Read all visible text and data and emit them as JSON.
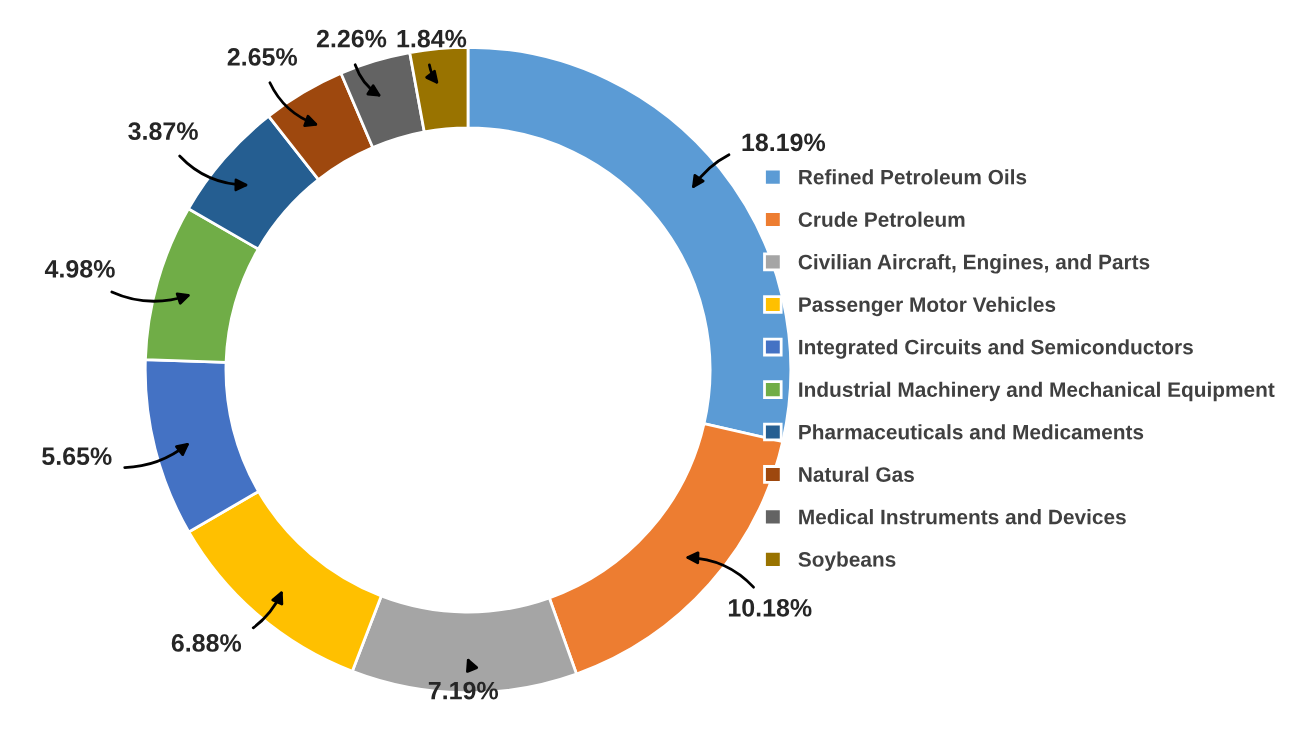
{
  "chart_data": {
    "type": "donut",
    "categories": [
      "Refined Petroleum Oils",
      "Crude Petroleum",
      "Civilian Aircraft, Engines, and Parts",
      "Passenger Motor Vehicles",
      "Integrated Circuits and Semiconductors",
      "Industrial Machinery and Mechanical Equipment",
      "Pharmaceuticals and Medicaments",
      "Natural Gas",
      "Medical Instruments and Devices",
      "Soybeans"
    ],
    "values": [
      18.19,
      10.18,
      7.19,
      6.88,
      5.65,
      4.98,
      3.87,
      2.65,
      2.26,
      1.84
    ],
    "colors": [
      "#5b9bd5",
      "#ed7d31",
      "#a5a5a5",
      "#ffc000",
      "#4472c4",
      "#70ad47",
      "#255e91",
      "#9e480e",
      "#636363",
      "#997300"
    ],
    "value_labels": [
      "18.19%",
      "10.18%",
      "7.19%",
      "6.88%",
      "5.65%",
      "4.98%",
      "3.87%",
      "2.65%",
      "2.26%",
      "1.84%"
    ],
    "legend": "right"
  }
}
